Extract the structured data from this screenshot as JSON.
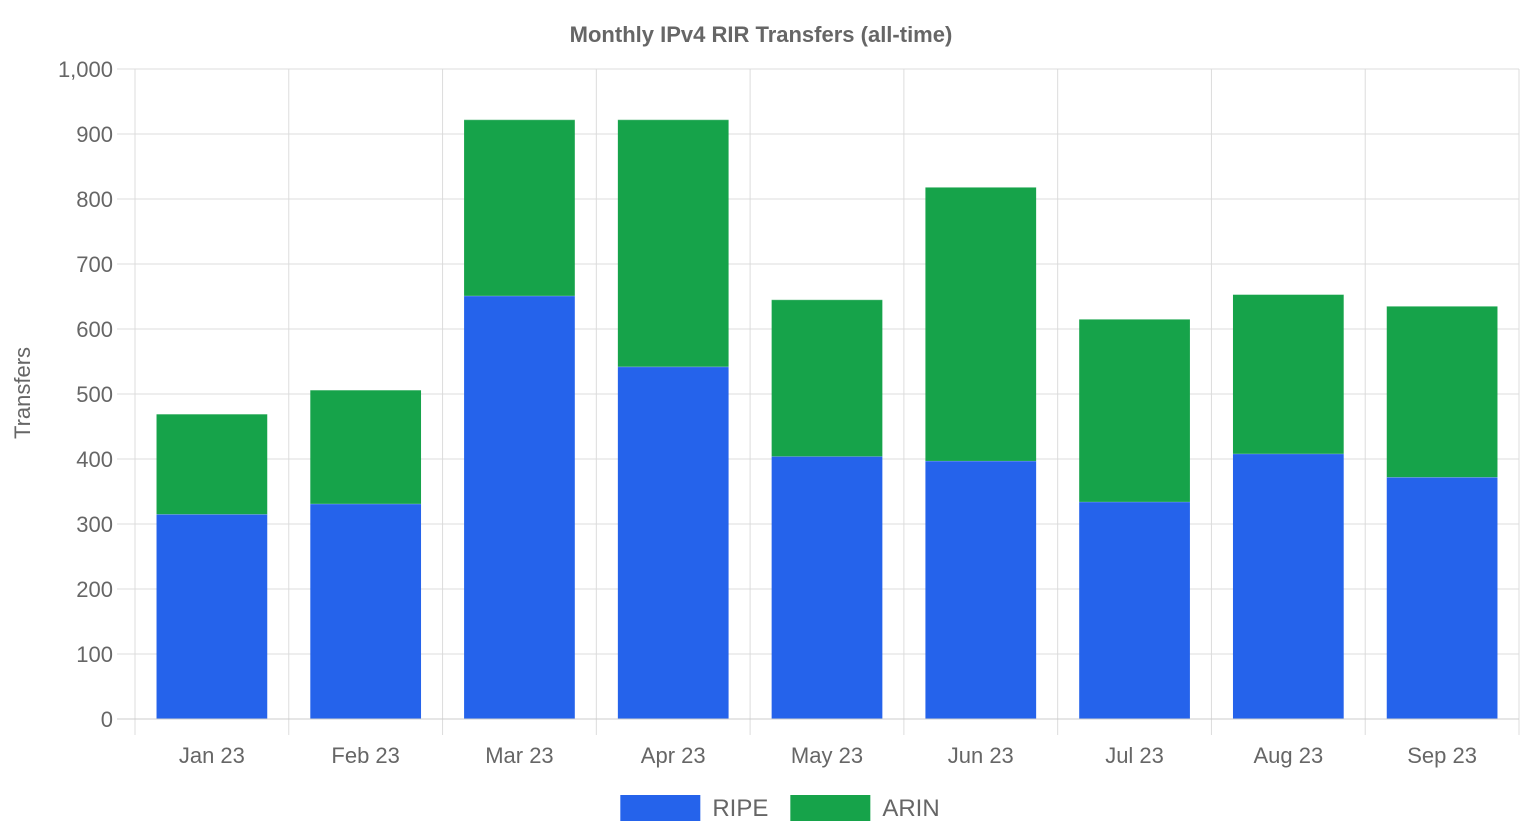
{
  "chart_data": {
    "type": "bar",
    "stacked": true,
    "title": "Monthly IPv4 RIR Transfers (all-time)",
    "xlabel": "",
    "ylabel": "Transfers",
    "ylim": [
      0,
      1000
    ],
    "yticks": [
      0,
      100,
      200,
      300,
      400,
      500,
      600,
      700,
      800,
      900,
      1000
    ],
    "ytick_labels": [
      "0",
      "100",
      "200",
      "300",
      "400",
      "500",
      "600",
      "700",
      "800",
      "900",
      "1,000"
    ],
    "categories": [
      "Jan 23",
      "Feb 23",
      "Mar 23",
      "Apr 23",
      "May 23",
      "Jun 23",
      "Jul 23",
      "Aug 23",
      "Sep 23"
    ],
    "series": [
      {
        "name": "RIPE",
        "color": "#2563eb",
        "values": [
          315,
          331,
          651,
          542,
          404,
          397,
          334,
          408,
          372
        ]
      },
      {
        "name": "ARIN",
        "color": "#16a34a",
        "values": [
          154,
          175,
          271,
          380,
          241,
          421,
          281,
          245,
          263
        ]
      }
    ],
    "grid": true,
    "legend_position": "bottom-center"
  }
}
